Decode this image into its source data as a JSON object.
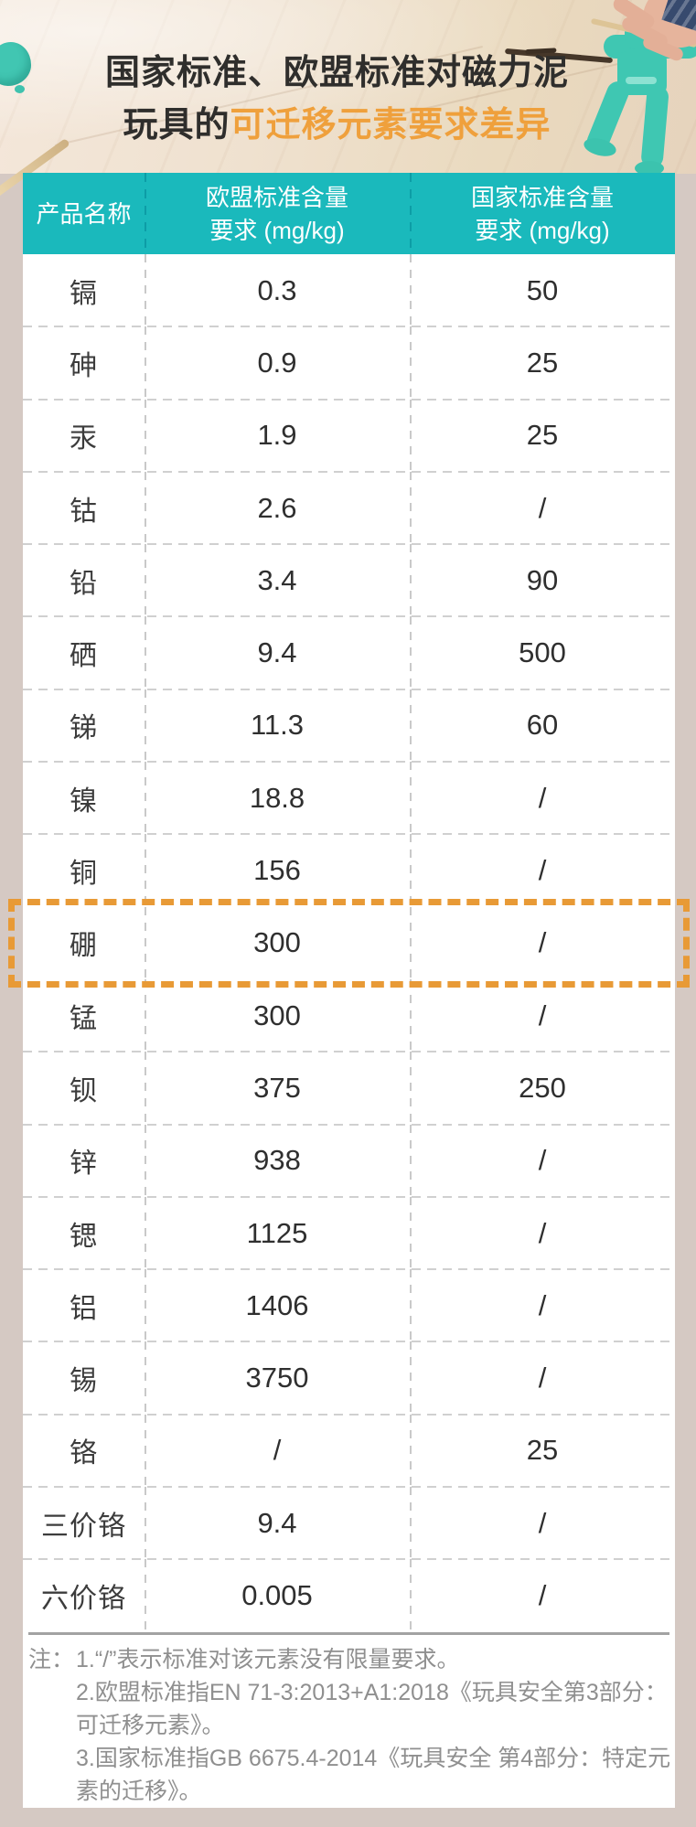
{
  "title": {
    "line1": "国家标准、欧盟标准对磁力泥",
    "line2_dark": "玩具的",
    "line2_orange": "可迁移元素要求差异"
  },
  "table_header": {
    "col1": "产品名称",
    "col2_line1": "欧盟标准含量",
    "col2_line2": "要求 (mg/kg)",
    "col3_line1": "国家标准含量",
    "col3_line2": "要求 (mg/kg)"
  },
  "chart_data": {
    "type": "table",
    "title": "国家标准、欧盟标准对磁力泥玩具的可迁移元素要求差异",
    "columns": [
      "产品名称",
      "欧盟标准含量要求 (mg/kg)",
      "国家标准含量要求 (mg/kg)"
    ],
    "rows": [
      {
        "element": "镉",
        "eu": "0.3",
        "national": "50"
      },
      {
        "element": "砷",
        "eu": "0.9",
        "national": "25"
      },
      {
        "element": "汞",
        "eu": "1.9",
        "national": "25"
      },
      {
        "element": "钴",
        "eu": "2.6",
        "national": "/"
      },
      {
        "element": "铅",
        "eu": "3.4",
        "national": "90"
      },
      {
        "element": "硒",
        "eu": "9.4",
        "national": "500"
      },
      {
        "element": "锑",
        "eu": "11.3",
        "national": "60"
      },
      {
        "element": "镍",
        "eu": "18.8",
        "national": "/"
      },
      {
        "element": "铜",
        "eu": "156",
        "national": "/"
      },
      {
        "element": "硼",
        "eu": "300",
        "national": "/"
      },
      {
        "element": "锰",
        "eu": "300",
        "national": "/"
      },
      {
        "element": "钡",
        "eu": "375",
        "national": "250"
      },
      {
        "element": "锌",
        "eu": "938",
        "national": "/"
      },
      {
        "element": "锶",
        "eu": "1125",
        "national": "/"
      },
      {
        "element": "铝",
        "eu": "1406",
        "national": "/"
      },
      {
        "element": "锡",
        "eu": "3750",
        "national": "/"
      },
      {
        "element": "铬",
        "eu": "/",
        "national": "25"
      },
      {
        "element": "三价铬",
        "eu": "9.4",
        "national": "/"
      },
      {
        "element": "六价铬",
        "eu": "0.005",
        "national": "/"
      }
    ],
    "highlighted_element": "硼"
  },
  "footnote": {
    "prefix": "注：",
    "items": [
      "1.“/”表示标准对该元素没有限量要求。",
      "2.欧盟标准指EN 71-3:2013+A1:2018《玩具安全第3部分：可迁移元素》。",
      "3.国家标准指GB 6675.4-2014《玩具安全 第4部分：特定元素的迁移》。"
    ]
  },
  "colors": {
    "header_teal": "#1ab9bc",
    "accent_orange": "#efa03c",
    "highlight_dash_orange": "#e89a36",
    "page_margin_pink": "#d5c9c3",
    "putty_teal": "#3fc7b2",
    "note_gray": "#8f8f8f"
  }
}
